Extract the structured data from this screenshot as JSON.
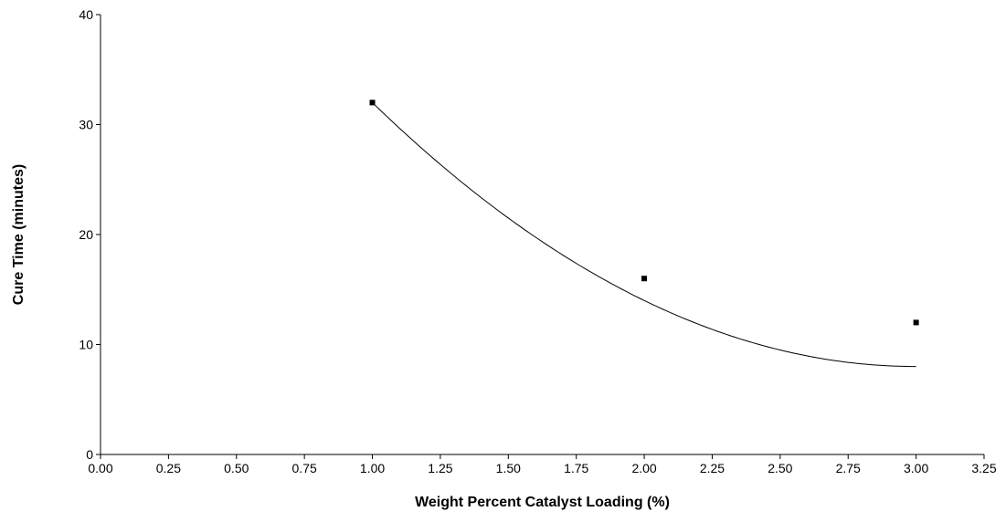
{
  "chart_data": {
    "type": "scatter",
    "title": "",
    "xlabel": "Weight Percent Catalyst Loading (%)",
    "ylabel": "Cure Time (minutes)",
    "xlim": [
      0,
      3.25
    ],
    "ylim": [
      0,
      40
    ],
    "grid": false,
    "legend": "none",
    "x_ticks": [
      "0.00",
      "0.25",
      "0.50",
      "0.75",
      "1.00",
      "1.25",
      "1.50",
      "1.75",
      "2.00",
      "2.25",
      "2.50",
      "2.75",
      "3.00",
      "3.25"
    ],
    "y_ticks": [
      "0",
      "10",
      "20",
      "30",
      "40"
    ],
    "series": [
      {
        "points": [
          {
            "x": 1.0,
            "y": 32
          },
          {
            "x": 2.0,
            "y": 16
          },
          {
            "x": 3.0,
            "y": 12
          }
        ]
      }
    ],
    "fit_curve": {
      "type": "quadratic",
      "equation_coefficients": {
        "a": 6.0,
        "b": -36.0,
        "c": 62.0
      },
      "x_range": [
        1.0,
        3.0
      ]
    },
    "colors": {
      "axis": "#000000",
      "marker": "#000000",
      "curve": "#000000",
      "background": "#ffffff"
    }
  }
}
